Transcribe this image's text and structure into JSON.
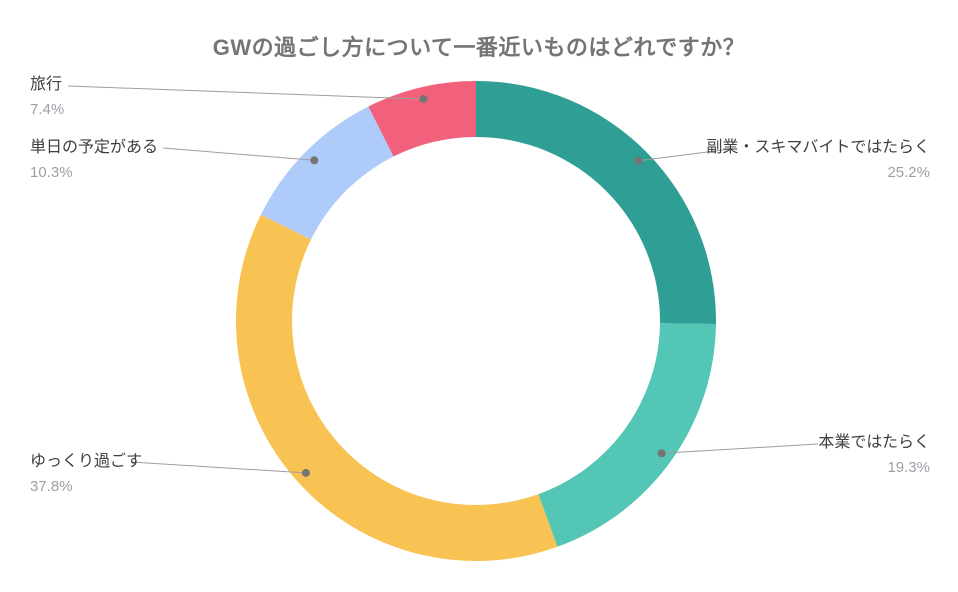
{
  "chart_data": {
    "type": "pie",
    "subtype": "donut",
    "title": "GWの過ごし方について一番近いものはどれですか？",
    "start_angle_deg": 0,
    "direction": "clockwise",
    "legend_position": "outside-callouts",
    "total_pct": 100,
    "segments": [
      {
        "label": "副業・スキマバイトではたらく",
        "value": 25.2,
        "pct": "25.2%",
        "color": "#2f9e94"
      },
      {
        "label": "本業ではたらく",
        "value": 19.3,
        "pct": "19.3%",
        "color": "#54c6b5"
      },
      {
        "label": "ゆっくり過ごす",
        "value": 37.8,
        "pct": "37.8%",
        "color": "#f8c353"
      },
      {
        "label": "単日の予定がある",
        "value": 10.3,
        "pct": "10.3%",
        "color": "#aecbfa"
      },
      {
        "label": "旅行",
        "value": 7.4,
        "pct": "7.4%",
        "color": "#f2617c"
      }
    ],
    "callout_line_color": "#9e9e9e",
    "title_color": "#757575"
  }
}
